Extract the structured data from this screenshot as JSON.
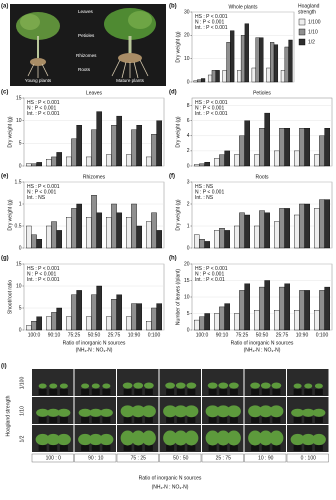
{
  "photo_a": {
    "panel": "(a)",
    "labels": [
      "Leaves",
      "Petioles",
      "Rhizomes",
      "Roots"
    ],
    "captions": [
      "Young plants",
      "Mature plants"
    ]
  },
  "chart_data": [
    {
      "type": "bar",
      "panel": "(b)",
      "title": "Whole plants",
      "y_label": "Dry weight (g)",
      "annotations": [
        "HS : P < 0.001",
        "N : P < 0.001",
        "Int. : P < 0.001"
      ],
      "legend_title": [
        "Hoagland",
        "strength"
      ],
      "series": [
        {
          "name": "1/100",
          "color": "#eeeeee",
          "values": [
            0.5,
            3,
            5,
            5,
            6,
            6,
            5
          ]
        },
        {
          "name": "1/10",
          "color": "#8f8f8f",
          "values": [
            1,
            5,
            17,
            20,
            19,
            17,
            15
          ]
        },
        {
          "name": "1/2",
          "color": "#2e2e2e",
          "values": [
            1.5,
            5,
            22,
            25,
            19,
            16,
            18
          ]
        }
      ],
      "ylim": [
        0,
        30
      ],
      "yticks": [
        0,
        10,
        20,
        30
      ],
      "grid": true
    },
    {
      "type": "bar",
      "panel": "(c)",
      "title": "Leaves",
      "y_label": "Dry weight (g)",
      "annotations": [
        "HS : P < 0.001",
        "N : P < 0.001",
        "Int. : P < 0.001"
      ],
      "series": [
        {
          "color": "#eeeeee",
          "values": [
            0.5,
            1.5,
            2,
            2,
            2.5,
            2.5,
            2
          ]
        },
        {
          "color": "#8f8f8f",
          "values": [
            0.5,
            2,
            6,
            8,
            9,
            8,
            7
          ]
        },
        {
          "color": "#2e2e2e",
          "values": [
            0.8,
            3,
            9,
            12,
            11,
            9,
            10
          ]
        }
      ],
      "ylim": [
        0,
        15
      ],
      "yticks": [
        0,
        5,
        10,
        15
      ],
      "grid": true
    },
    {
      "type": "bar",
      "panel": "(d)",
      "title": "Petioles",
      "y_label": "Dry weight (g)",
      "annotations": [
        "HS : P < 0.001",
        "N : P < 0.001",
        "Int. : P < 0.001"
      ],
      "series": [
        {
          "color": "#eeeeee",
          "values": [
            0.2,
            1,
            1.5,
            1.5,
            2,
            2,
            1.5
          ]
        },
        {
          "color": "#8f8f8f",
          "values": [
            0.3,
            1.5,
            4,
            5,
            5,
            5,
            4
          ]
        },
        {
          "color": "#2e2e2e",
          "values": [
            0.5,
            2,
            6,
            7,
            5,
            5,
            5
          ]
        }
      ],
      "ylim": [
        0,
        9
      ],
      "yticks": [
        0,
        2,
        4,
        6,
        8
      ],
      "grid": true
    },
    {
      "type": "bar",
      "panel": "(e)",
      "title": "Rhizomes",
      "y_label": "Dry weight (g)",
      "annotations": [
        "HS : P < 0.001",
        "N : P < 0.001",
        "Int. : NS"
      ],
      "series": [
        {
          "color": "#eeeeee",
          "values": [
            0.5,
            0.5,
            0.7,
            0.7,
            0.7,
            0.7,
            0.6
          ]
        },
        {
          "color": "#8f8f8f",
          "values": [
            0.3,
            0.6,
            0.9,
            1.2,
            1.0,
            1.0,
            0.8
          ]
        },
        {
          "color": "#2e2e2e",
          "values": [
            0.2,
            0.4,
            1.0,
            0.8,
            0.8,
            0.5,
            0.4
          ]
        }
      ],
      "ylim": [
        0,
        1.5
      ],
      "yticks": [
        0,
        0.5,
        1,
        1.5
      ],
      "grid": true
    },
    {
      "type": "bar",
      "panel": "(f)",
      "title": "Roots",
      "y_label": "Dry weight (g)",
      "annotations": [
        "HS : NS",
        "N : P < 0.001",
        "Int. : NS"
      ],
      "series": [
        {
          "color": "#eeeeee",
          "values": [
            0.6,
            0.8,
            1,
            1,
            1.2,
            1.5,
            1.8
          ]
        },
        {
          "color": "#8f8f8f",
          "values": [
            0.4,
            0.9,
            1.6,
            1.7,
            1.8,
            2,
            2.2
          ]
        },
        {
          "color": "#2e2e2e",
          "values": [
            0.3,
            0.8,
            1.5,
            1.6,
            1.8,
            2,
            2.2
          ]
        }
      ],
      "ylim": [
        0,
        3
      ],
      "yticks": [
        0,
        1,
        2,
        3
      ],
      "grid": true
    },
    {
      "type": "bar",
      "panel": "(g)",
      "y_label": "Shoot/root ratio",
      "annotations": [
        "HS : P < 0.001",
        "N : P < 0.001",
        "Int. : P < 0.001"
      ],
      "categories": [
        "100:0",
        "90:10",
        "75:25",
        "50:50",
        "25:75",
        "10:90",
        "0:100"
      ],
      "x_label": [
        "Ratio of inorganic N sources",
        "(NH₄-N : NO₃-N)"
      ],
      "series": [
        {
          "color": "#eeeeee",
          "values": [
            1,
            3,
            3,
            3,
            3,
            3,
            2
          ]
        },
        {
          "color": "#8f8f8f",
          "values": [
            2,
            4,
            8,
            8,
            7,
            6,
            5
          ]
        },
        {
          "color": "#2e2e2e",
          "values": [
            3,
            5,
            9,
            10,
            8,
            6,
            6
          ]
        }
      ],
      "ylim": [
        0,
        15
      ],
      "yticks": [
        0,
        5,
        10,
        15
      ],
      "grid": true
    },
    {
      "type": "bar",
      "panel": "(h)",
      "y_label": "Number of leaves (/plant)",
      "annotations": [
        "HS : P < 0.001",
        "N : P < 0.001",
        "Int. : P < 0.01"
      ],
      "categories": [
        "100:0",
        "90:10",
        "75:25",
        "50:50",
        "25:75",
        "10:90",
        "0:100"
      ],
      "x_label": [
        "Ratio of inorganic N sources",
        "(NH₄-N : NO₃-N)"
      ],
      "series": [
        {
          "color": "#eeeeee",
          "values": [
            3,
            5,
            5,
            6,
            6,
            6,
            6
          ]
        },
        {
          "color": "#8f8f8f",
          "values": [
            4,
            7,
            12,
            13,
            13,
            12,
            12
          ]
        },
        {
          "color": "#2e2e2e",
          "values": [
            5,
            8,
            14,
            15,
            14,
            12,
            13
          ]
        }
      ],
      "ylim": [
        0,
        20
      ],
      "yticks": [
        0,
        5,
        10,
        15,
        20
      ],
      "grid": true
    }
  ],
  "photo_i": {
    "panel": "(i)",
    "row_title": "Hoagland strength",
    "rows": [
      "1/100",
      "1/10",
      "1/2"
    ],
    "columns": [
      "100 : 0",
      "90 : 10",
      "75 : 25",
      "50 : 50",
      "25 : 75",
      "10 : 90",
      "0 : 100"
    ],
    "x_label": [
      "Ratio of inorganic N sources",
      "(NH₄-N : NO₃-N)"
    ]
  }
}
